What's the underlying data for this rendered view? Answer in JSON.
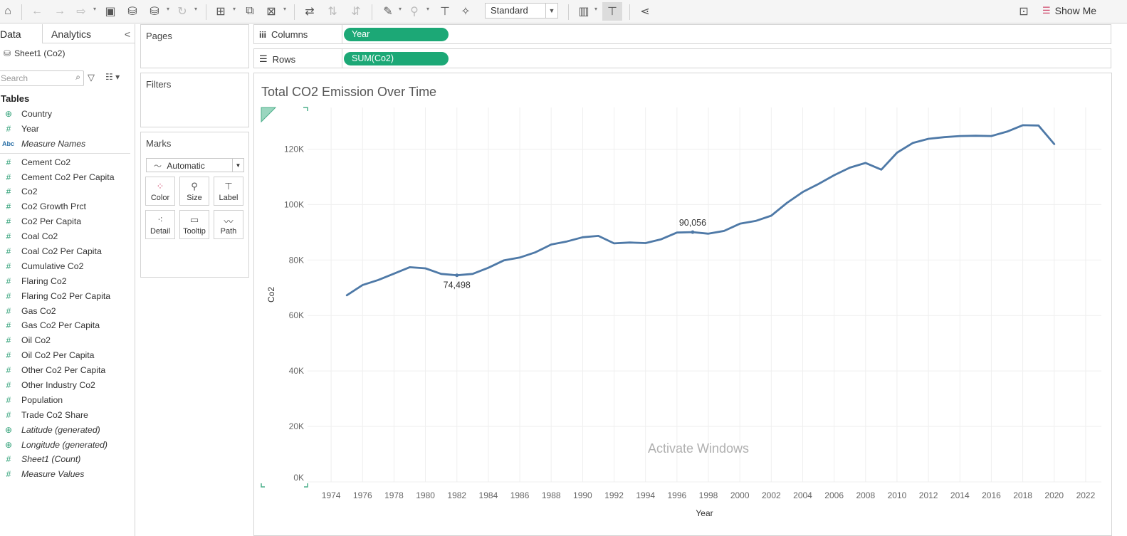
{
  "toolbar": {
    "fit_mode": "Standard",
    "show_me_label": "Show Me",
    "icons": [
      "home-icon",
      "undo-icon",
      "redo-icon",
      "replay-icon",
      "save-icon",
      "new-datasource-icon",
      "pause-updates-icon",
      "refresh-icon",
      "new-worksheet-icon",
      "duplicate-sheet-icon",
      "clear-sheet-icon",
      "swap-icon",
      "sort-ascending-icon",
      "sort-descending-icon",
      "highlight-icon",
      "group-icon",
      "label-icon",
      "pin-icon",
      "show-cards-icon",
      "presentation-icon",
      "share-icon",
      "tooltip-icon"
    ]
  },
  "data_pane": {
    "tab_data": "Data",
    "tab_analytics": "Analytics",
    "collapse_glyph": "<",
    "datasource": "Sheet1 (Co2)",
    "search_placeholder": "Search",
    "tables_heading": "Tables",
    "dimensions": [
      {
        "name": "Country",
        "icon": "globe",
        "italic": false
      },
      {
        "name": "Year",
        "icon": "hash",
        "italic": false
      },
      {
        "name": "Measure Names",
        "icon": "abc",
        "italic": true
      }
    ],
    "measures": [
      {
        "name": "Cement Co2",
        "icon": "hash",
        "italic": false
      },
      {
        "name": "Cement Co2 Per Capita",
        "icon": "hash",
        "italic": false
      },
      {
        "name": "Co2",
        "icon": "hash",
        "italic": false
      },
      {
        "name": "Co2 Growth Prct",
        "icon": "hash",
        "italic": false
      },
      {
        "name": "Co2 Per Capita",
        "icon": "hash",
        "italic": false
      },
      {
        "name": "Coal Co2",
        "icon": "hash",
        "italic": false
      },
      {
        "name": "Coal Co2 Per Capita",
        "icon": "hash",
        "italic": false
      },
      {
        "name": "Cumulative Co2",
        "icon": "hash",
        "italic": false
      },
      {
        "name": "Flaring Co2",
        "icon": "hash",
        "italic": false
      },
      {
        "name": "Flaring Co2 Per Capita",
        "icon": "hash",
        "italic": false
      },
      {
        "name": "Gas Co2",
        "icon": "hash",
        "italic": false
      },
      {
        "name": "Gas Co2 Per Capita",
        "icon": "hash",
        "italic": false
      },
      {
        "name": "Oil Co2",
        "icon": "hash",
        "italic": false
      },
      {
        "name": "Oil Co2 Per Capita",
        "icon": "hash",
        "italic": false
      },
      {
        "name": "Other Co2 Per Capita",
        "icon": "hash",
        "italic": false
      },
      {
        "name": "Other Industry Co2",
        "icon": "hash",
        "italic": false
      },
      {
        "name": "Population",
        "icon": "hash",
        "italic": false
      },
      {
        "name": "Trade Co2 Share",
        "icon": "hash",
        "italic": false
      },
      {
        "name": "Latitude (generated)",
        "icon": "globe",
        "italic": true
      },
      {
        "name": "Longitude (generated)",
        "icon": "globe",
        "italic": true
      },
      {
        "name": "Sheet1 (Count)",
        "icon": "hash",
        "italic": true
      },
      {
        "name": "Measure Values",
        "icon": "hash",
        "italic": true
      }
    ]
  },
  "cards": {
    "pages": "Pages",
    "filters": "Filters",
    "marks": "Marks",
    "mark_type": "Automatic",
    "mark_buttons": [
      {
        "label": "Color",
        "icon": "color-icon"
      },
      {
        "label": "Size",
        "icon": "size-icon"
      },
      {
        "label": "Label",
        "icon": "label-icon"
      },
      {
        "label": "Detail",
        "icon": "detail-icon"
      },
      {
        "label": "Tooltip",
        "icon": "tooltip-icon"
      },
      {
        "label": "Path",
        "icon": "path-icon"
      }
    ]
  },
  "shelves": {
    "columns_label": "Columns",
    "columns_pill": "Year",
    "rows_label": "Rows",
    "rows_pill": "SUM(Co2)"
  },
  "colors": {
    "pill": "#1ca876",
    "line": "#4e79a7",
    "field_icon": "#2a9e74"
  },
  "watermark": "Activate Windows",
  "chart_data": {
    "type": "line",
    "title": "Total CO2 Emission Over Time",
    "xlabel": "Year",
    "ylabel": "Co2",
    "xlim": [
      1972.5,
      2023
    ],
    "ylim": [
      0,
      135000
    ],
    "x_ticks": [
      1974,
      1976,
      1978,
      1980,
      1982,
      1984,
      1986,
      1988,
      1990,
      1992,
      1994,
      1996,
      1998,
      2000,
      2002,
      2004,
      2006,
      2008,
      2010,
      2012,
      2014,
      2016,
      2018,
      2020,
      2022
    ],
    "y_ticks": [
      0,
      20000,
      40000,
      60000,
      80000,
      100000,
      120000
    ],
    "y_tick_labels": [
      "0K",
      "20K",
      "40K",
      "60K",
      "80K",
      "100K",
      "120K"
    ],
    "grid": true,
    "series": [
      {
        "x": [
          1975,
          1976,
          1977,
          1978,
          1979,
          1980,
          1981,
          1982,
          1983,
          1984,
          1985,
          1986,
          1987,
          1988,
          1989,
          1990,
          1991,
          1992,
          1993,
          1994,
          1995,
          1996,
          1997,
          1998,
          1999,
          2000,
          2001,
          2002,
          2003,
          2004,
          2005,
          2006,
          2007,
          2008,
          2009,
          2010,
          2011,
          2012,
          2013,
          2014,
          2015,
          2016,
          2017,
          2018,
          2019,
          2020
        ],
        "values": [
          67300,
          71000,
          72800,
          75100,
          77400,
          77000,
          75000,
          74498,
          75000,
          77200,
          79900,
          80900,
          82800,
          85600,
          86700,
          88200,
          88700,
          86000,
          86300,
          86100,
          87500,
          89900,
          90056,
          89500,
          90500,
          93100,
          94100,
          96000,
          100600,
          104500,
          107400,
          110600,
          113300,
          115000,
          112600,
          118700,
          122200,
          123700,
          124300,
          124700,
          124800,
          124700,
          126300,
          128600,
          128500,
          121800
        ],
        "labels": [
          {
            "x": 1982,
            "y": 74498,
            "text": "74,498"
          },
          {
            "x": 1997,
            "y": 90056,
            "text": "90,056"
          }
        ]
      }
    ]
  }
}
